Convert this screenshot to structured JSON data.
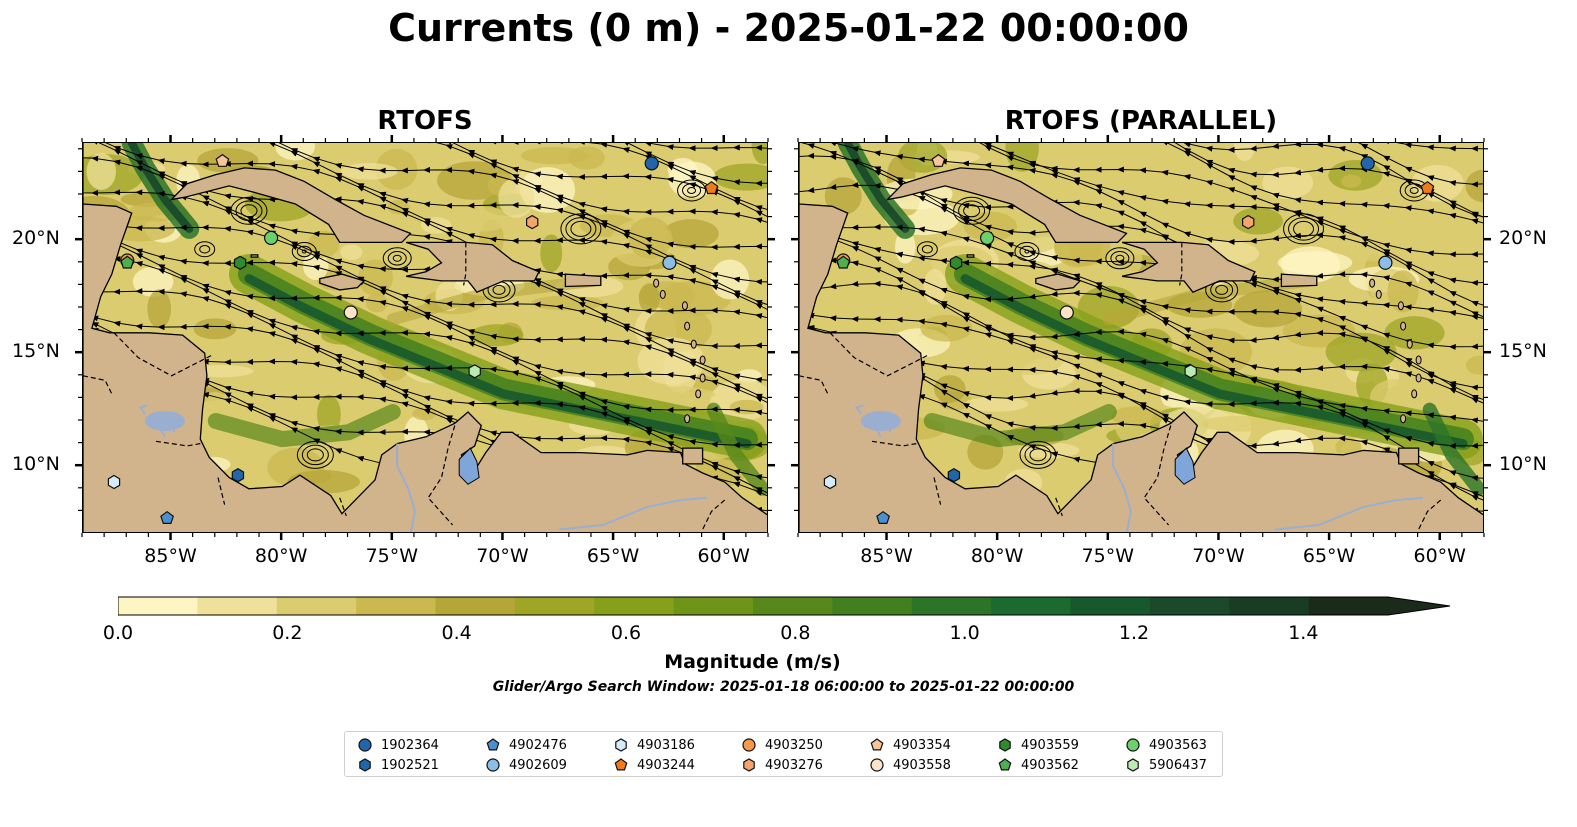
{
  "title": "Currents (0 m) - 2025-01-22 00:00:00",
  "panels": [
    {
      "title": "RTOFS",
      "variant": 0
    },
    {
      "title": "RTOFS (PARALLEL)",
      "variant": 1
    }
  ],
  "map": {
    "lon_range": [
      -89,
      -58
    ],
    "lat_range": [
      7,
      24.3
    ],
    "lat_ticks": [
      "10°N",
      "15°N",
      "20°N"
    ],
    "lat_tick_values": [
      10,
      15,
      20
    ],
    "lon_ticks": [
      "85°W",
      "80°W",
      "75°W",
      "70°W",
      "65°W",
      "60°W"
    ],
    "lon_tick_values": [
      -85,
      -80,
      -75,
      -70,
      -65,
      -60
    ],
    "land_color": "#d2b48c",
    "river_color": "#9aaed0",
    "lake_color": "#7fa6d9"
  },
  "colorbar": {
    "label": "Magnitude (m/s)",
    "ticks": [
      "0.0",
      "0.2",
      "0.4",
      "0.6",
      "0.8",
      "1.0",
      "1.2",
      "1.4"
    ],
    "tick_values": [
      0.0,
      0.2,
      0.4,
      0.6,
      0.8,
      1.0,
      1.2,
      1.4
    ],
    "range": [
      0,
      1.5
    ],
    "extend": "max",
    "colors": [
      "#fdf6c3",
      "#efe09a",
      "#dccc70",
      "#cbb84f",
      "#b5a638",
      "#9fa525",
      "#86a01a",
      "#6e9418",
      "#58881b",
      "#42801f",
      "#2c7428",
      "#1b6a2e",
      "#17592c",
      "#1a4a2a",
      "#1b3c24",
      "#1b2a1a"
    ]
  },
  "search_window": "Glider/Argo Search Window: 2025-01-18 06:00:00 to 2025-01-22 00:00:00",
  "floats": [
    {
      "id": "1902364",
      "marker": "circle",
      "color": "#2166ac",
      "lon": -63.3,
      "lat": 23.4
    },
    {
      "id": "1902521",
      "marker": "hexagon",
      "color": "#2166ac",
      "lon": -82.0,
      "lat": 9.6
    },
    {
      "id": "4902476",
      "marker": "pentagon",
      "color": "#4a90d0",
      "lon": -85.2,
      "lat": 7.7
    },
    {
      "id": "4902609",
      "marker": "circle",
      "color": "#8bbde6",
      "lon": -62.5,
      "lat": 19.0
    },
    {
      "id": "4903186",
      "marker": "hexagon",
      "color": "#d4ebfa",
      "lon": -87.6,
      "lat": 9.3
    },
    {
      "id": "4903244",
      "marker": "pentagon",
      "color": "#f07b1a",
      "lon": -60.6,
      "lat": 22.3
    },
    {
      "id": "4903250",
      "marker": "circle",
      "color": "#f59a4a",
      "lon": -87.0,
      "lat": 19.1
    },
    {
      "id": "4903276",
      "marker": "hexagon",
      "color": "#f5a56a",
      "lon": -68.7,
      "lat": 20.8
    },
    {
      "id": "4903354",
      "marker": "pentagon",
      "color": "#f8c59a",
      "lon": -82.7,
      "lat": 23.5
    },
    {
      "id": "4903558",
      "marker": "circle",
      "color": "#fde3c8",
      "lon": -76.9,
      "lat": 16.8
    },
    {
      "id": "4903559",
      "marker": "hexagon",
      "color": "#2e8b2e",
      "lon": -81.9,
      "lat": 19.0
    },
    {
      "id": "4903562",
      "marker": "pentagon",
      "color": "#4caf50",
      "lon": -87.0,
      "lat": 19.0
    },
    {
      "id": "4903563",
      "marker": "circle",
      "color": "#6cd16c",
      "lon": -80.5,
      "lat": 20.1
    },
    {
      "id": "5906437",
      "marker": "hexagon",
      "color": "#b9ecb0",
      "lon": -71.3,
      "lat": 14.2
    }
  ]
}
